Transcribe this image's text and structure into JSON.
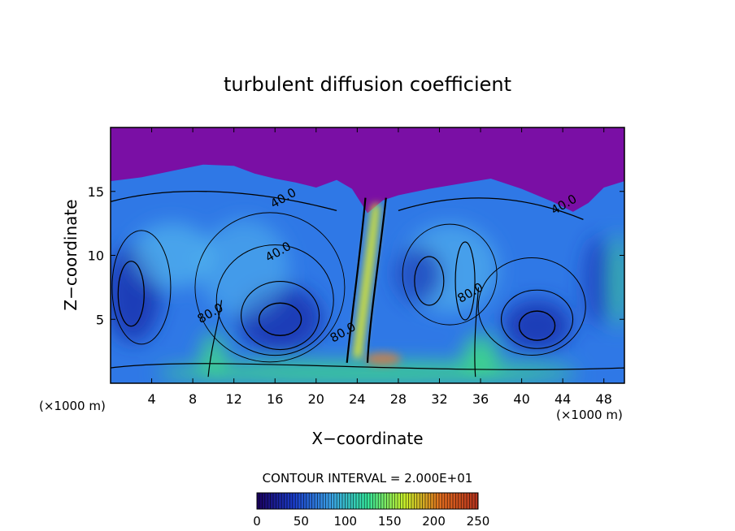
{
  "chart_data": {
    "type": "heatmap",
    "title": "turbulent diffusion coefficient",
    "xlabel": "X−coordinate",
    "ylabel": "Z−coordinate",
    "x_unit_left": "(×1000 m)",
    "x_unit_right": "(×1000 m)",
    "xlim": [
      0,
      50
    ],
    "ylim": [
      0,
      20
    ],
    "xticks": [
      4,
      8,
      12,
      16,
      20,
      24,
      28,
      32,
      36,
      40,
      44,
      48
    ],
    "yticks": [
      5,
      10,
      15
    ],
    "contour_interval_text": "CONTOUR INTERVAL = 2.000E+01",
    "contour_labels": [
      {
        "text": "40.0",
        "x": 17,
        "y": 14.2
      },
      {
        "text": "40.0",
        "x": 16.5,
        "y": 10.0
      },
      {
        "text": "40.0",
        "x": 44.3,
        "y": 13.7
      },
      {
        "text": "80.0",
        "x": 9.9,
        "y": 5.2
      },
      {
        "text": "80.0",
        "x": 35.2,
        "y": 6.8
      },
      {
        "text": "80.0",
        "x": 22.8,
        "y": 3.7
      }
    ],
    "colorbar": {
      "range": [
        0,
        250
      ],
      "ticks": [
        0,
        50,
        100,
        150,
        200,
        250
      ],
      "colors": [
        "#1a0060",
        "#1a3cc8",
        "#3aa0e6",
        "#33e39a",
        "#c8f02a",
        "#e06a1e",
        "#b4321e"
      ]
    },
    "field_colors": {
      "upper": "#7a0fa5",
      "core": "#1e3cb8",
      "mid": "#2f78e6",
      "light": "#5cc6f0",
      "bottom": "#3ed68c",
      "jet": "#e6f020"
    }
  }
}
